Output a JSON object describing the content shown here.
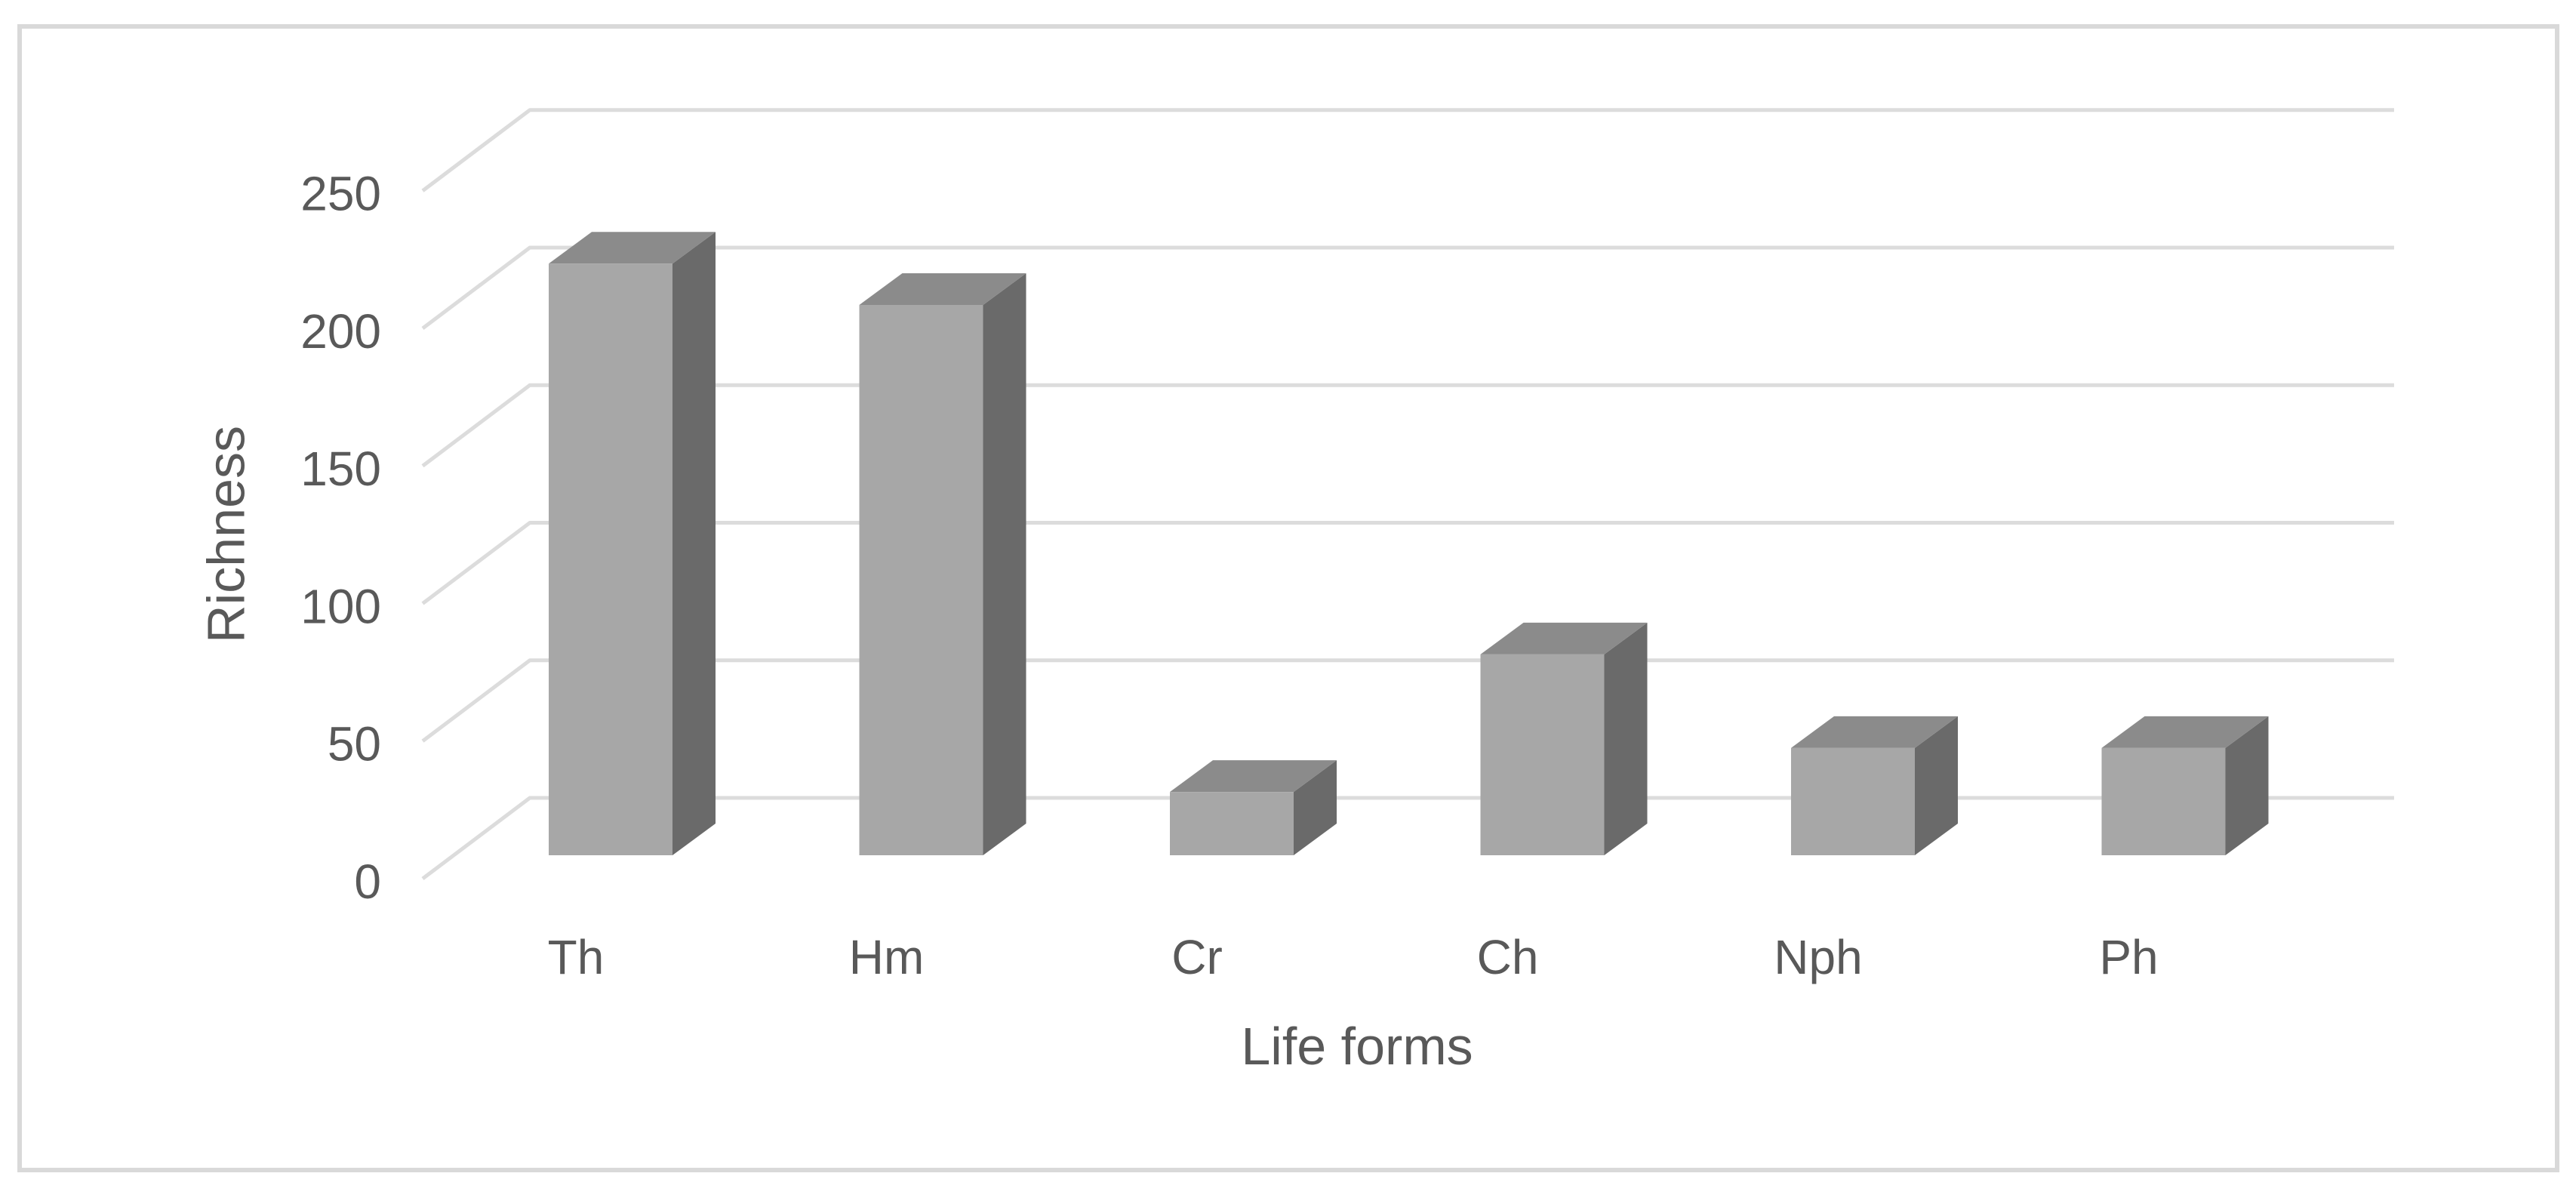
{
  "figure": {
    "background": "#ffffff",
    "border_color": "#d9d9d9"
  },
  "colors": {
    "bar_front": "#a7a7a7",
    "bar_top": "#8b8b8b",
    "bar_side": "#6a6a6a",
    "gridline": "#dcdcdc",
    "text": "#595959"
  },
  "chart_data": {
    "type": "bar",
    "variant": "3d-column",
    "title": "",
    "xlabel": "Life forms",
    "ylabel": "Richness",
    "categories": [
      "Th",
      "Hm",
      "Cr",
      "Ch",
      "Nph",
      "Ph"
    ],
    "series": [
      {
        "name": "Richness",
        "values": [
          215,
          200,
          23,
          73,
          39,
          39
        ]
      }
    ],
    "yticks": [
      0,
      50,
      100,
      150,
      200,
      250
    ],
    "ylim": [
      0,
      250
    ],
    "grid": true,
    "legend": "none"
  }
}
